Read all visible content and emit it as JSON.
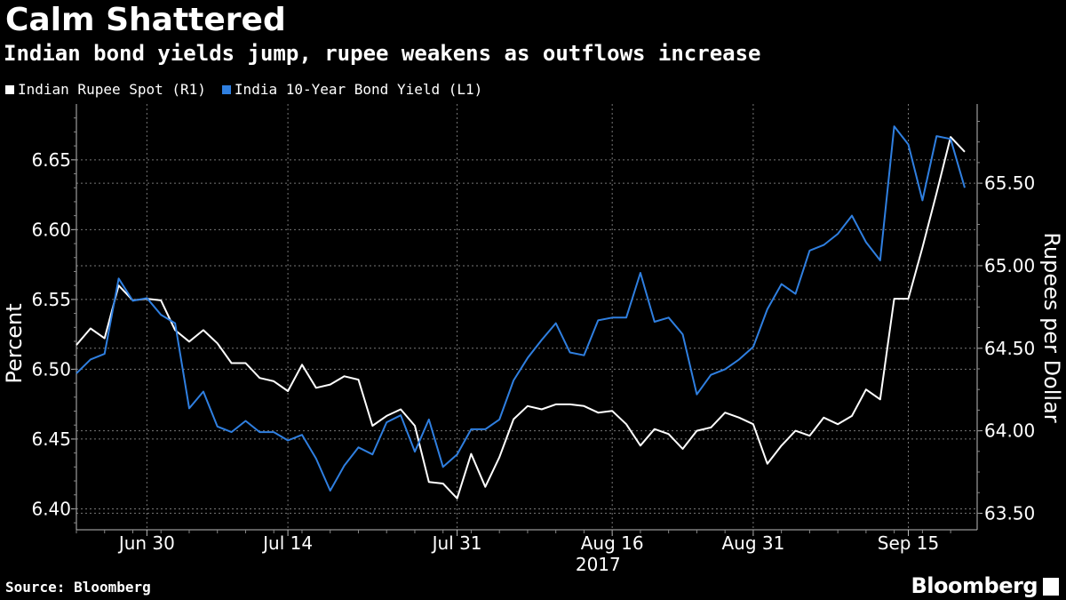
{
  "header": {
    "title": "Calm Shattered",
    "subtitle": "Indian bond yields jump, rupee weakens as outflows increase"
  },
  "footer": {
    "source": "Source: Bloomberg",
    "brand": "Bloomberg"
  },
  "colors": {
    "background": "#000000",
    "rupee": "#ffffff",
    "bond": "#2f7fe0",
    "grid": "#777777"
  },
  "chart_data": {
    "type": "line",
    "title": "Calm Shattered",
    "subtitle": "Indian bond yields jump, rupee weakens as outflows increase",
    "xlabel": "2017",
    "x_tick_labels": [
      "Jun 30",
      "Jul 14",
      "Jul 31",
      "Aug 16",
      "Aug 31",
      "Sep 15"
    ],
    "x_tick_index": [
      5,
      15,
      27,
      38,
      48,
      59
    ],
    "ylabel_left": "Percent",
    "ylabel_right": "Rupees per Dollar",
    "ylim_left": [
      6.385,
      6.69
    ],
    "ylim_right": [
      63.4,
      65.98
    ],
    "yticks_left": [
      6.4,
      6.45,
      6.5,
      6.55,
      6.6,
      6.65
    ],
    "yticks_left_labels": [
      "6.40",
      "6.45",
      "6.50",
      "6.55",
      "6.60",
      "6.65"
    ],
    "yticks_right": [
      63.5,
      64.0,
      64.5,
      65.0,
      65.5
    ],
    "yticks_right_labels": [
      "63.50",
      "64.00",
      "64.50",
      "65.00",
      "65.50"
    ],
    "legend": "top-left",
    "series": [
      {
        "name": "Indian Rupee Spot (R1)",
        "axis": "right",
        "values": [
          64.52,
          64.62,
          64.56,
          64.88,
          64.79,
          64.8,
          64.79,
          64.61,
          64.54,
          64.61,
          64.53,
          64.41,
          64.41,
          64.32,
          64.3,
          64.24,
          64.4,
          64.26,
          64.28,
          64.33,
          64.31,
          64.03,
          64.09,
          64.13,
          64.03,
          63.69,
          63.68,
          63.59,
          63.86,
          63.66,
          63.84,
          64.07,
          64.15,
          64.13,
          64.16,
          64.16,
          64.15,
          64.11,
          64.12,
          64.04,
          63.91,
          64.01,
          63.98,
          63.89,
          64.0,
          64.02,
          64.11,
          64.08,
          64.04,
          63.8,
          63.91,
          64.0,
          63.97,
          64.08,
          64.04,
          64.09,
          64.25,
          64.19,
          64.8,
          64.8,
          65.11,
          65.44,
          65.78,
          65.69
        ]
      },
      {
        "name": "India 10-Year Bond Yield  (L1)",
        "axis": "left",
        "values": [
          6.497,
          6.507,
          6.511,
          6.565,
          6.549,
          6.551,
          6.539,
          6.533,
          6.472,
          6.484,
          6.459,
          6.455,
          6.463,
          6.455,
          6.455,
          6.449,
          6.453,
          6.436,
          6.413,
          6.431,
          6.444,
          6.439,
          6.462,
          6.467,
          6.441,
          6.464,
          6.43,
          6.439,
          6.457,
          6.457,
          6.464,
          6.492,
          6.508,
          6.521,
          6.533,
          6.512,
          6.51,
          6.535,
          6.537,
          6.537,
          6.569,
          6.534,
          6.537,
          6.525,
          6.482,
          6.496,
          6.5,
          6.507,
          6.516,
          6.543,
          6.561,
          6.554,
          6.585,
          6.589,
          6.597,
          6.61,
          6.591,
          6.578,
          6.674,
          6.661,
          6.621,
          6.667,
          6.665,
          6.63
        ]
      }
    ]
  }
}
